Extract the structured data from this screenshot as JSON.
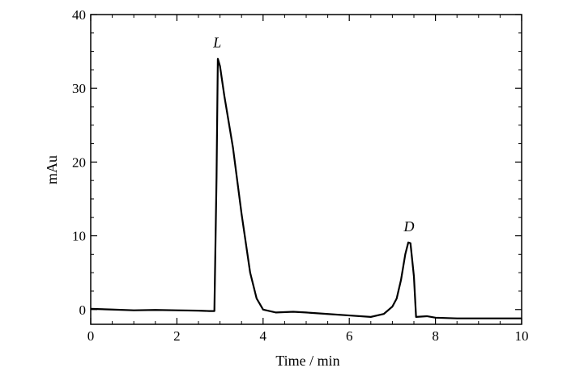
{
  "chart_data": {
    "type": "line",
    "xlabel": "Time / min",
    "ylabel": "mAu",
    "xlim": [
      0,
      10
    ],
    "ylim": [
      -2,
      40
    ],
    "x_ticks": [
      0,
      2,
      4,
      6,
      8,
      10
    ],
    "y_ticks": [
      0,
      10,
      20,
      30,
      40
    ],
    "grid": false,
    "annotations": [
      {
        "text": "L",
        "x": 2.9,
        "y": 34
      },
      {
        "text": "D",
        "x": 7.35,
        "y": 9.1
      }
    ],
    "series": [
      {
        "x": [
          0,
          0.5,
          1.0,
          1.5,
          2.0,
          2.5,
          2.75,
          2.87,
          2.92,
          2.95,
          3.0,
          3.1,
          3.3,
          3.5,
          3.7,
          3.85,
          4.0,
          4.3,
          4.7,
          5.0,
          5.5,
          6.0,
          6.5,
          6.8,
          7.0,
          7.1,
          7.2,
          7.3,
          7.37,
          7.42,
          7.5,
          7.55,
          7.8,
          8.0,
          8.5,
          9.0,
          9.5,
          10.0
        ],
        "y": [
          0.1,
          0.0,
          -0.1,
          -0.05,
          -0.1,
          -0.15,
          -0.2,
          -0.2,
          18,
          34,
          33,
          29,
          22,
          13,
          5,
          1.5,
          0.0,
          -0.4,
          -0.3,
          -0.4,
          -0.6,
          -0.8,
          -1.0,
          -0.6,
          0.4,
          1.5,
          4.0,
          7.5,
          9.1,
          9.0,
          4.5,
          -1.0,
          -0.9,
          -1.1,
          -1.2,
          -1.2,
          -1.2,
          -1.2
        ]
      }
    ]
  }
}
